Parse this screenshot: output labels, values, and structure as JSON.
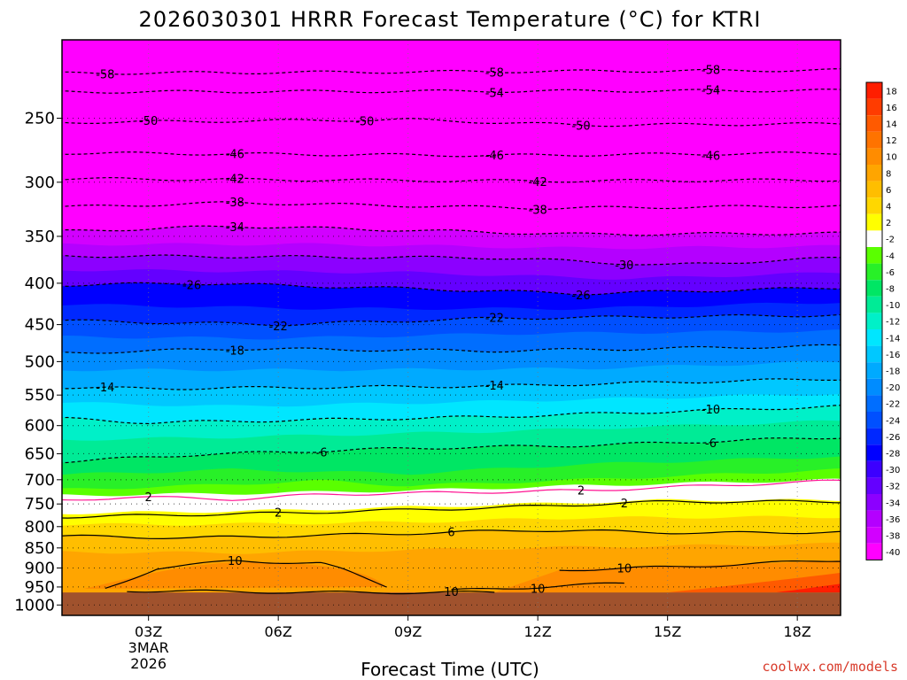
{
  "chart_data": {
    "type": "heatmap",
    "title": "2026030301 HRRR Forecast Temperature (°C) for KTRI",
    "xlabel": "Forecast Time (UTC)",
    "ylabel": "",
    "credit": "coolwx.com/models",
    "x_range_hours": [
      0,
      18
    ],
    "x_ticks": [
      {
        "hour": 2,
        "label": "03Z",
        "sub1": "3MAR",
        "sub2": "2026"
      },
      {
        "hour": 5,
        "label": "06Z"
      },
      {
        "hour": 8,
        "label": "09Z"
      },
      {
        "hour": 11,
        "label": "12Z"
      },
      {
        "hour": 14,
        "label": "15Z"
      },
      {
        "hour": 17,
        "label": "18Z"
      }
    ],
    "y_axis_type": "pressure_log",
    "y_range_hpa": [
      1030,
      200
    ],
    "y_ticks": [
      250,
      300,
      350,
      400,
      450,
      500,
      550,
      600,
      650,
      700,
      750,
      800,
      850,
      900,
      950,
      1000
    ],
    "surface_pressure_hpa": 965,
    "colorbar": {
      "levels": [
        18,
        16,
        14,
        12,
        10,
        8,
        6,
        4,
        2,
        -2,
        -4,
        -6,
        -8,
        -10,
        -12,
        -14,
        -16,
        -18,
        -20,
        -22,
        -24,
        -26,
        -28,
        -30,
        -32,
        -34,
        -36,
        -38,
        -40
      ],
      "tick_labels": [
        "18",
        "16",
        "14",
        "12",
        "10",
        "8",
        "6",
        "4",
        "2",
        "-2",
        "-4",
        "-6",
        "-8",
        "-10",
        "-12",
        "-14",
        "-16",
        "-18",
        "-20",
        "-22",
        "-24",
        "-26",
        "-28",
        "-30",
        "-32",
        "-34",
        "-36",
        "-38",
        "-40"
      ],
      "colors": [
        "#ff1e00",
        "#ff3c00",
        "#ff5a00",
        "#ff7300",
        "#ff8c00",
        "#ffa500",
        "#ffbe00",
        "#ffd700",
        "#ffff00",
        "#ffffff",
        "#5aff00",
        "#28f028",
        "#00e664",
        "#00eb96",
        "#00f0c8",
        "#00e6ff",
        "#00c8ff",
        "#00aaff",
        "#008cff",
        "#006eff",
        "#0050ff",
        "#0028ff",
        "#0000ff",
        "#3c00ff",
        "#6400ff",
        "#8c00ff",
        "#b400ff",
        "#d200ff",
        "#ff00ff"
      ]
    },
    "contours": [
      {
        "value": -58,
        "profile": [
          [
            0,
            220
          ],
          [
            18,
            218
          ]
        ],
        "labels": [
          {
            "h": 1,
            "t": "-58"
          },
          {
            "h": 10,
            "t": "-58"
          },
          {
            "h": 15,
            "t": "-58"
          }
        ]
      },
      {
        "value": -54,
        "profile": [
          [
            0,
            232
          ],
          [
            18,
            231
          ]
        ],
        "labels": [
          {
            "h": 10,
            "t": "-54"
          },
          {
            "h": 15,
            "t": "-54"
          }
        ]
      },
      {
        "value": -50,
        "profile": [
          [
            0,
            253
          ],
          [
            8,
            251
          ],
          [
            12,
            255
          ],
          [
            18,
            254
          ]
        ],
        "labels": [
          {
            "h": 2,
            "t": "-50"
          },
          {
            "h": 7,
            "t": "-50"
          },
          {
            "h": 12,
            "t": "-50"
          }
        ]
      },
      {
        "value": -46,
        "profile": [
          [
            0,
            276
          ],
          [
            10,
            278
          ],
          [
            18,
            276
          ]
        ],
        "labels": [
          {
            "h": 4,
            "t": "-46"
          },
          {
            "h": 10,
            "t": "-46"
          },
          {
            "h": 15,
            "t": "-46"
          }
        ]
      },
      {
        "value": -42,
        "profile": [
          [
            0,
            297
          ],
          [
            11,
            299
          ],
          [
            18,
            298
          ]
        ],
        "labels": [
          {
            "h": 4,
            "t": "-42"
          },
          {
            "h": 11,
            "t": "-42"
          }
        ]
      },
      {
        "value": -38,
        "profile": [
          [
            0,
            322
          ],
          [
            4,
            318
          ],
          [
            11,
            323
          ],
          [
            18,
            321
          ]
        ],
        "labels": [
          {
            "h": 4,
            "t": "-38"
          },
          {
            "h": 11,
            "t": "-38"
          }
        ]
      },
      {
        "value": -34,
        "profile": [
          [
            0,
            345
          ],
          [
            4,
            340
          ],
          [
            12,
            348
          ],
          [
            18,
            347
          ]
        ],
        "labels": [
          {
            "h": 4,
            "t": "-34"
          }
        ]
      },
      {
        "value": -30,
        "profile": [
          [
            0,
            370
          ],
          [
            10,
            372
          ],
          [
            14,
            380
          ],
          [
            18,
            372
          ]
        ],
        "labels": [
          {
            "h": 13,
            "t": "-30"
          }
        ]
      },
      {
        "value": -26,
        "profile": [
          [
            0,
            402
          ],
          [
            3,
            400
          ],
          [
            8,
            406
          ],
          [
            12,
            412
          ],
          [
            18,
            405
          ]
        ],
        "labels": [
          {
            "h": 3,
            "t": "-26"
          },
          {
            "h": 12,
            "t": "-26"
          }
        ]
      },
      {
        "value": -22,
        "profile": [
          [
            0,
            445
          ],
          [
            5,
            450
          ],
          [
            10,
            442
          ],
          [
            18,
            438
          ]
        ],
        "labels": [
          {
            "h": 5,
            "t": "-22"
          },
          {
            "h": 10,
            "t": "-22"
          }
        ]
      },
      {
        "value": -18,
        "profile": [
          [
            0,
            488
          ],
          [
            4,
            482
          ],
          [
            10,
            485
          ],
          [
            18,
            478
          ]
        ],
        "labels": [
          {
            "h": 4,
            "t": "-18"
          }
        ]
      },
      {
        "value": -14,
        "profile": [
          [
            0,
            538
          ],
          [
            2,
            540
          ],
          [
            10,
            536
          ],
          [
            18,
            525
          ]
        ],
        "labels": [
          {
            "h": 1,
            "t": "-14"
          },
          {
            "h": 10,
            "t": "-14"
          }
        ]
      },
      {
        "value": -10,
        "profile": [
          [
            0,
            588
          ],
          [
            2,
            595
          ],
          [
            10,
            585
          ],
          [
            18,
            568
          ]
        ],
        "labels": [
          {
            "h": 15,
            "t": "-10"
          }
        ]
      },
      {
        "value": -6,
        "profile": [
          [
            0,
            665
          ],
          [
            3,
            652
          ],
          [
            8,
            640
          ],
          [
            12,
            635
          ],
          [
            18,
            620
          ]
        ],
        "labels": [
          {
            "h": 6,
            "t": "-6"
          },
          {
            "h": 15,
            "t": "-6"
          }
        ]
      },
      {
        "value": 2,
        "style": "magenta",
        "profile": [
          [
            0,
            743
          ],
          [
            1.5,
            735
          ],
          [
            4,
            740
          ],
          [
            6,
            730
          ],
          [
            12,
            722
          ],
          [
            18,
            702
          ]
        ],
        "labels": [
          {
            "h": 2,
            "t": "2"
          },
          {
            "h": 12,
            "t": "2"
          }
        ]
      },
      {
        "value": 2,
        "style": "solid",
        "profile": [
          [
            0,
            778
          ],
          [
            2,
            775
          ],
          [
            5,
            770
          ],
          [
            10,
            758
          ],
          [
            14,
            745
          ],
          [
            18,
            745
          ]
        ],
        "labels": [
          {
            "h": 5,
            "t": "2"
          },
          {
            "h": 13,
            "t": "2"
          }
        ]
      },
      {
        "value": 6,
        "style": "solid",
        "profile": [
          [
            0,
            822
          ],
          [
            3,
            826
          ],
          [
            7,
            818
          ],
          [
            11,
            808
          ],
          [
            15,
            815
          ],
          [
            18,
            812
          ]
        ],
        "labels": [
          {
            "h": 9,
            "t": "6"
          }
        ]
      },
      {
        "value": 10,
        "style": "solid",
        "profile": [
          [
            1,
            955
          ],
          [
            2.2,
            900
          ],
          [
            4,
            882
          ],
          [
            6,
            888
          ],
          [
            6.5,
            905
          ],
          [
            7.5,
            948
          ]
        ],
        "labels": [
          {
            "h": 4,
            "t": "10"
          }
        ]
      },
      {
        "value": 10,
        "style": "solid",
        "profile": [
          [
            11.5,
            905
          ],
          [
            14,
            898
          ],
          [
            18,
            880
          ]
        ],
        "labels": [
          {
            "h": 13,
            "t": "10"
          }
        ]
      },
      {
        "value": 10,
        "style": "solid",
        "profile": [
          [
            9,
            960
          ],
          [
            11,
            950
          ],
          [
            13,
            940
          ]
        ],
        "labels": [
          {
            "h": 11,
            "t": "10"
          }
        ]
      },
      {
        "value": 10,
        "style": "solid",
        "profile": [
          [
            1.5,
            960
          ],
          [
            6,
            965
          ],
          [
            10,
            965
          ]
        ],
        "labels": [
          {
            "h": 9,
            "t": "10"
          }
        ]
      }
    ]
  }
}
